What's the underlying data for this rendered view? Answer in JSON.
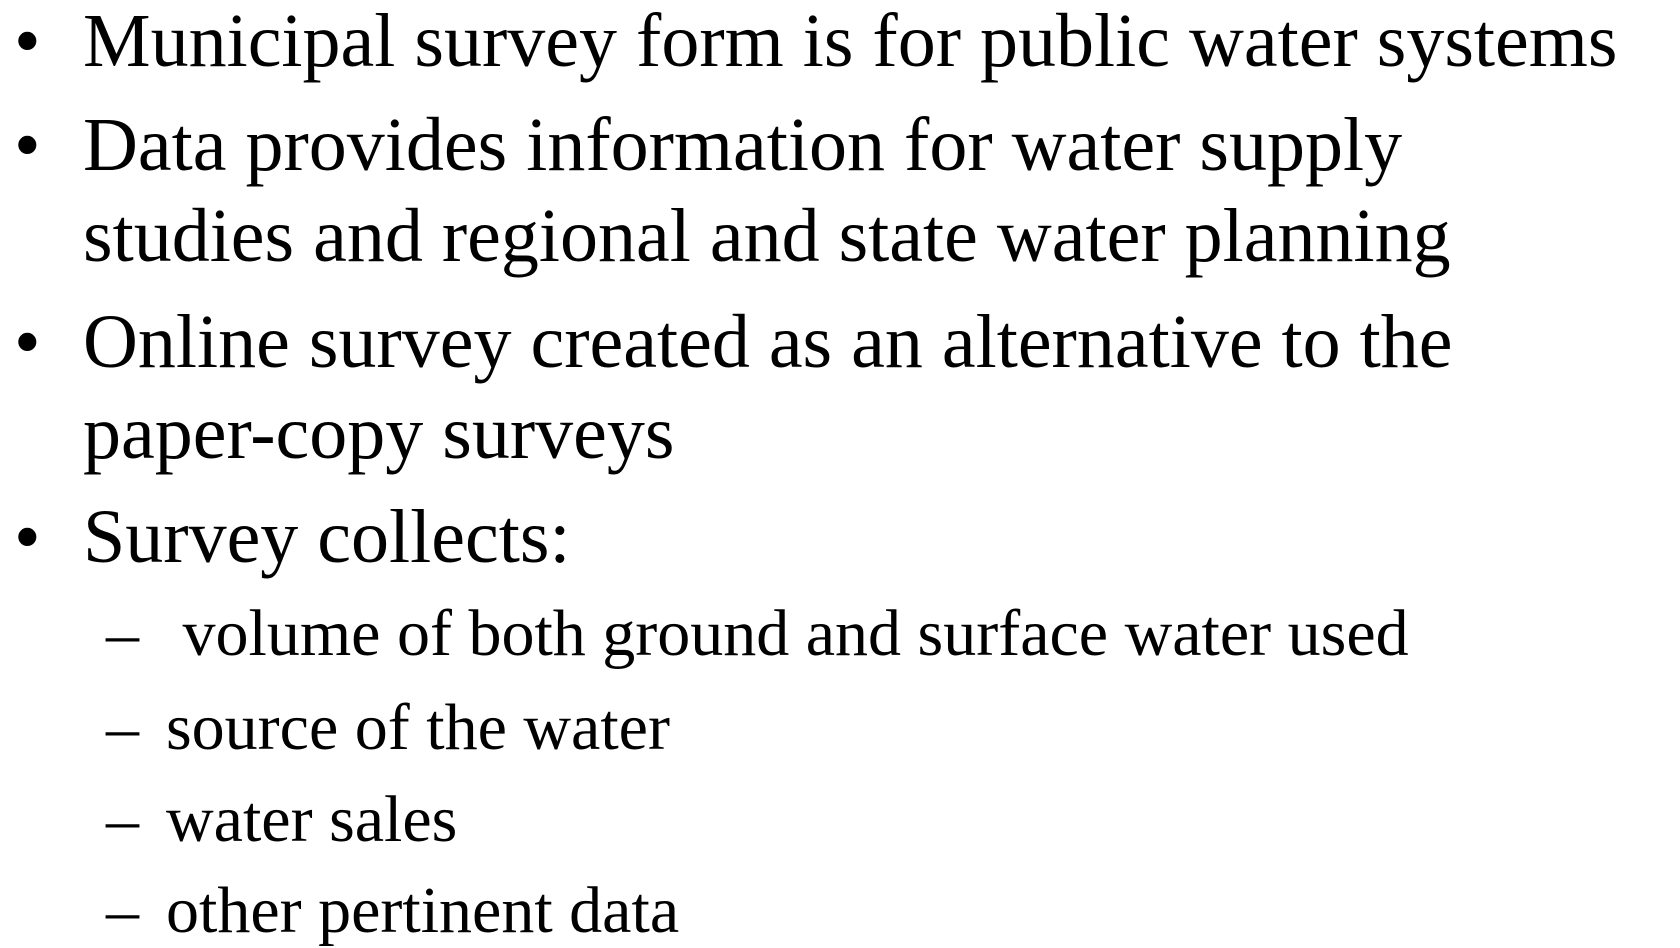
{
  "bullets": [
    {
      "lines": [
        "Municipal survey form is for public water systems"
      ]
    },
    {
      "lines": [
        "Data provides information for water supply",
        "studies and regional and state water planning"
      ]
    },
    {
      "lines": [
        "Online survey created as an alternative to the",
        "paper-copy surveys"
      ]
    },
    {
      "lines": [
        "Survey collects:"
      ],
      "subitems": [
        " volume of both ground and surface water used",
        "source of the water",
        "water sales",
        "other pertinent data"
      ]
    }
  ]
}
